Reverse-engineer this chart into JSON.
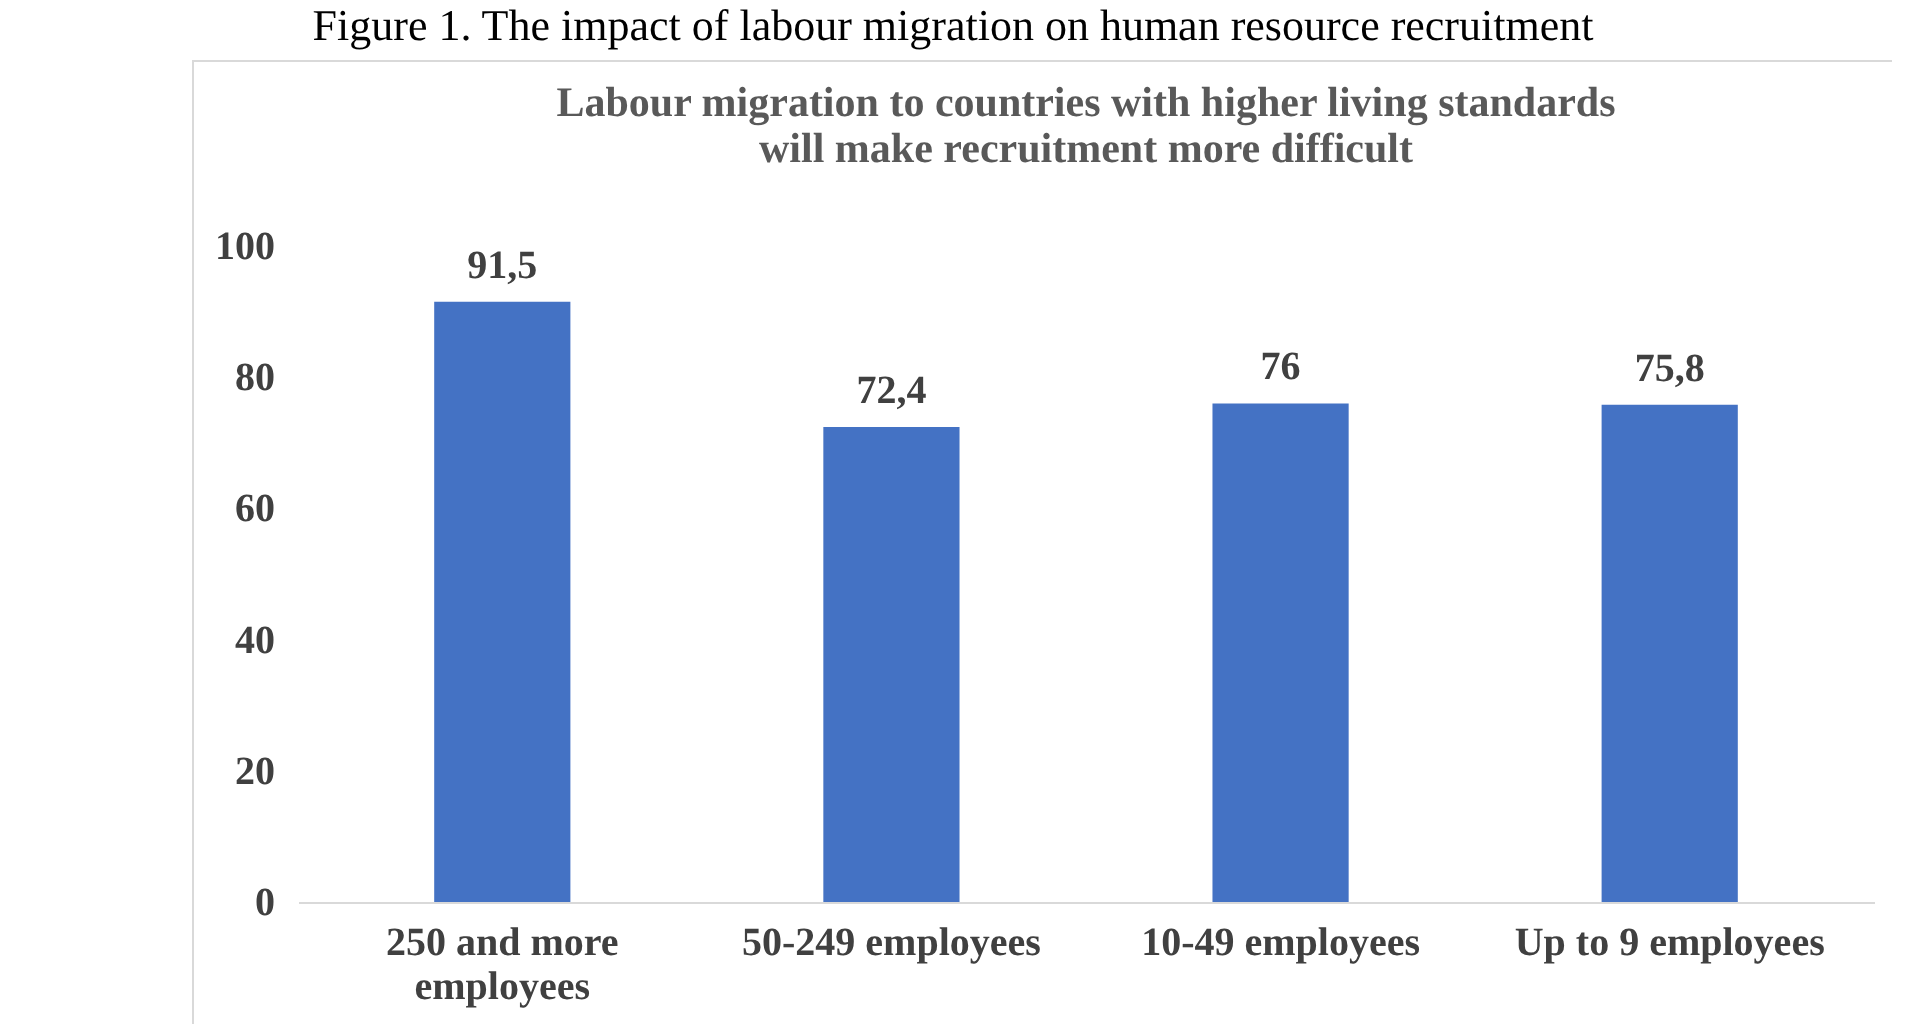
{
  "chart_data": {
    "type": "bar",
    "title": [
      "Labour migration to countries with higher living  standards",
      "will make recruitment more difficult"
    ],
    "annotations": [
      "Figure 1. The impact of labour migration on human resource recruitment"
    ],
    "categories": [
      "250 and more employees",
      "50-249 employees",
      "10-49 employees",
      "Up to 9 employees"
    ],
    "values": [
      91.5,
      72.4,
      76,
      75.8
    ],
    "value_labels": [
      "91,5",
      "72,4",
      "76",
      "75,8"
    ],
    "color": "#4472c4",
    "ylim": [
      0,
      100
    ],
    "yticks": [
      0,
      20,
      40,
      60,
      80,
      100
    ]
  }
}
